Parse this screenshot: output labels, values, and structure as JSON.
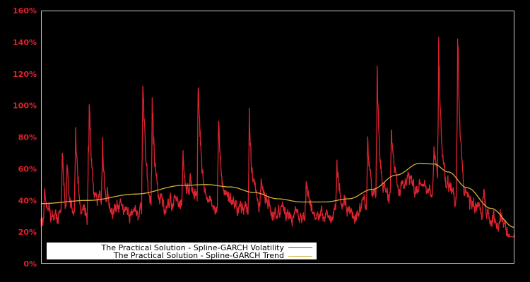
{
  "chart_data": {
    "type": "line",
    "title": "",
    "xlabel": "",
    "ylabel": "",
    "ylim": [
      0,
      160
    ],
    "yticks": [
      "0%",
      "20%",
      "40%",
      "60%",
      "80%",
      "100%",
      "120%",
      "140%",
      "160%"
    ],
    "grid": false,
    "legend_position": "lower left",
    "x_fraction_domain": [
      0,
      1
    ],
    "series": [
      {
        "name": "The Practical Solution - Spline-GARCH Volatility",
        "color": "#dc2330",
        "description": "Daily conditional volatility (%), noisy around ~25-45% with spikes",
        "peaks": [
          {
            "x": 0.008,
            "y": 45
          },
          {
            "x": 0.045,
            "y": 67
          },
          {
            "x": 0.055,
            "y": 70
          },
          {
            "x": 0.073,
            "y": 87
          },
          {
            "x": 0.1,
            "y": 82
          },
          {
            "x": 0.102,
            "y": 112
          },
          {
            "x": 0.13,
            "y": 60
          },
          {
            "x": 0.13,
            "y": 76
          },
          {
            "x": 0.14,
            "y": 55
          },
          {
            "x": 0.215,
            "y": 124
          },
          {
            "x": 0.235,
            "y": 109
          },
          {
            "x": 0.3,
            "y": 76
          },
          {
            "x": 0.315,
            "y": 60
          },
          {
            "x": 0.332,
            "y": 125
          },
          {
            "x": 0.375,
            "y": 90
          },
          {
            "x": 0.44,
            "y": 105
          },
          {
            "x": 0.465,
            "y": 58
          },
          {
            "x": 0.56,
            "y": 55
          },
          {
            "x": 0.625,
            "y": 65
          },
          {
            "x": 0.69,
            "y": 82
          },
          {
            "x": 0.71,
            "y": 128
          },
          {
            "x": 0.74,
            "y": 85
          },
          {
            "x": 0.775,
            "y": 62
          },
          {
            "x": 0.83,
            "y": 74
          },
          {
            "x": 0.84,
            "y": 142
          },
          {
            "x": 0.88,
            "y": 150
          },
          {
            "x": 0.895,
            "y": 46
          },
          {
            "x": 0.935,
            "y": 47
          },
          {
            "x": 0.97,
            "y": 32
          }
        ],
        "baseline_range": [
          22,
          45
        ],
        "end_value": 18
      },
      {
        "name": "The Practical Solution - Spline-GARCH Trend",
        "color": "#d4b03a",
        "x": [
          0.0,
          0.1,
          0.2,
          0.3,
          0.35,
          0.4,
          0.45,
          0.5,
          0.55,
          0.6,
          0.65,
          0.7,
          0.75,
          0.8,
          0.83,
          0.86,
          0.9,
          0.95,
          1.0
        ],
        "values": [
          38,
          40,
          44,
          49.5,
          50,
          48.5,
          45,
          41,
          39,
          39,
          41,
          47,
          56,
          63.5,
          63,
          58,
          48,
          35,
          23
        ]
      }
    ]
  },
  "axis": {
    "frame_color": "#c8c8c8",
    "tick_label_color": "#e0202a"
  },
  "legend": {
    "items": [
      {
        "label": "The Practical Solution - Spline-GARCH Volatility",
        "color": "#dc2330"
      },
      {
        "label": "The Practical Solution - Spline-GARCH Trend",
        "color": "#d4b03a"
      }
    ]
  }
}
